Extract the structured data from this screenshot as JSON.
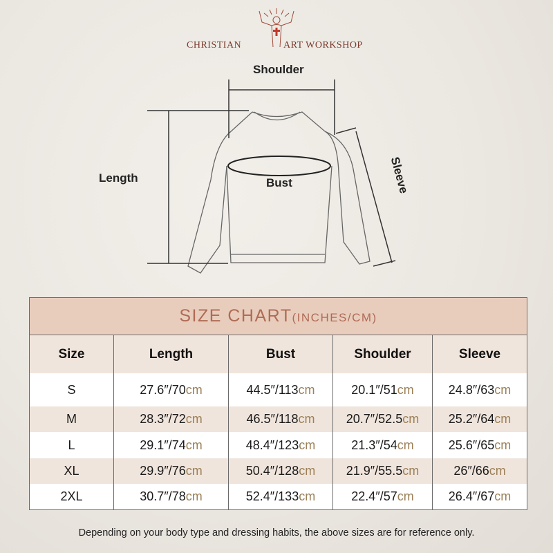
{
  "brand": {
    "left": "CHRISTIAN",
    "right": "ART WORKSHOP"
  },
  "diagram": {
    "shoulder": "Shoulder",
    "length": "Length",
    "bust": "Bust",
    "sleeve": "Sleeve"
  },
  "table": {
    "title": "SIZE CHART",
    "title_units": "(INCHES/CM)",
    "headers": [
      "Size",
      "Length",
      "Bust",
      "Shoulder",
      "Sleeve"
    ],
    "rows": [
      {
        "size": "S",
        "cells": [
          [
            "27.6″/70",
            "cm"
          ],
          [
            "44.5″/113",
            "cm"
          ],
          [
            "20.1″/51",
            "cm"
          ],
          [
            "24.8″/63",
            "cm"
          ]
        ]
      },
      {
        "size": "M",
        "cells": [
          [
            "28.3″/72",
            "cm"
          ],
          [
            "46.5″/118",
            "cm"
          ],
          [
            "20.7″/52.5",
            "cm"
          ],
          [
            "25.2″/64",
            "cm"
          ]
        ]
      },
      {
        "size": "L",
        "cells": [
          [
            "29.1″/74",
            "cm"
          ],
          [
            "48.4″/123",
            "cm"
          ],
          [
            "21.3″/54",
            "cm"
          ],
          [
            "25.6″/65",
            "cm"
          ]
        ]
      },
      {
        "size": "XL",
        "cells": [
          [
            "29.9″/76",
            "cm"
          ],
          [
            "50.4″/128",
            "cm"
          ],
          [
            "21.9″/55.5",
            "cm"
          ],
          [
            "26″/66",
            "cm"
          ]
        ]
      },
      {
        "size": "2XL",
        "cells": [
          [
            "30.7″/78",
            "cm"
          ],
          [
            "52.4″/133",
            "cm"
          ],
          [
            "22.4″/57",
            "cm"
          ],
          [
            "26.4″/67",
            "cm"
          ]
        ]
      }
    ]
  },
  "note": "Depending on your body type and dressing habits, the above sizes are for reference only.",
  "colors": {
    "title_band": "#e8cdbd",
    "title_text": "#b06b55",
    "row_alt": "#f0e5dc",
    "cm": "#9c8057",
    "brand": "#7a3a2e"
  }
}
